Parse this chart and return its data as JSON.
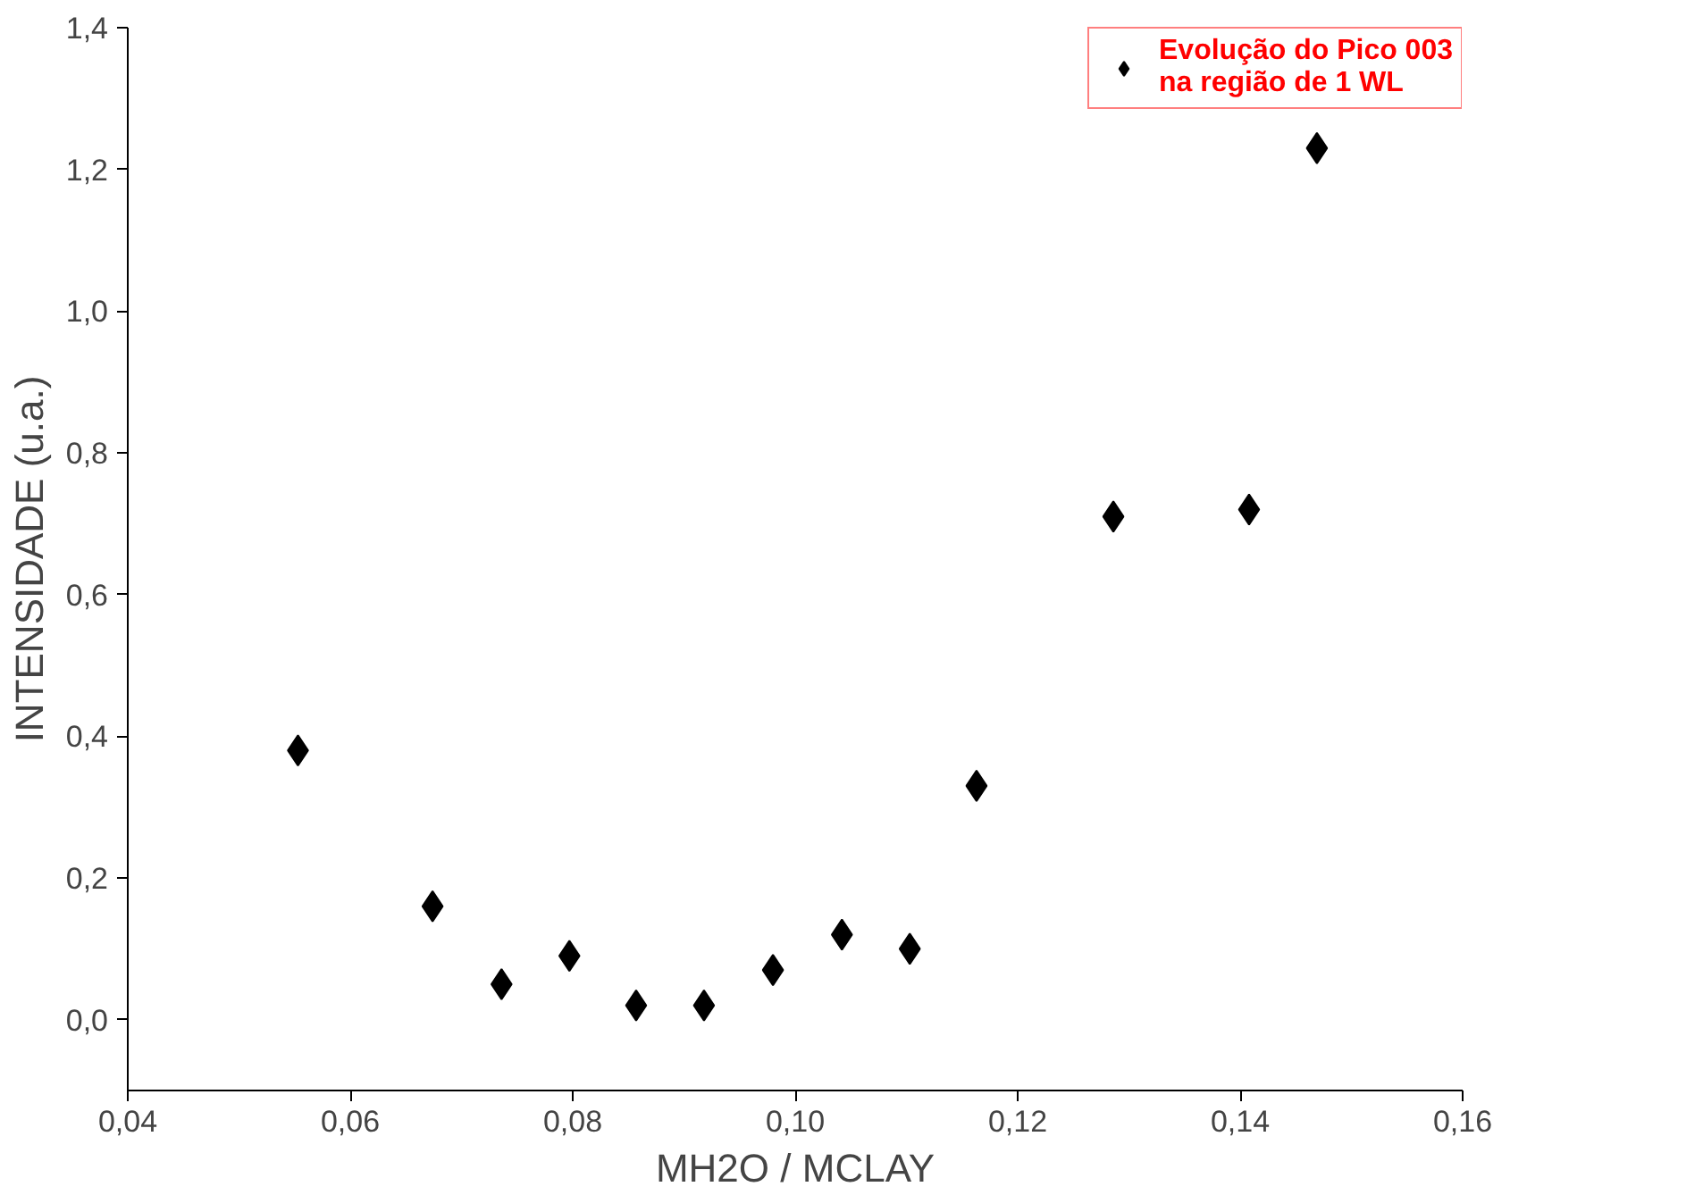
{
  "chart_data": {
    "type": "scatter",
    "xlabel": "MH2O / MCLAY",
    "ylabel": "INTENSIDADE (u.a.)",
    "x": [
      0.0553,
      0.0674,
      0.0736,
      0.0797,
      0.0857,
      0.0918,
      0.098,
      0.1042,
      0.1103,
      0.1163,
      0.1286,
      0.1408,
      0.1469
    ],
    "series": [
      {
        "name": "Evolução do Pico 003\nna região de 1 WL",
        "color": "#000000",
        "values": [
          0.38,
          0.16,
          0.05,
          0.09,
          0.02,
          0.02,
          0.07,
          0.12,
          0.1,
          0.33,
          0.71,
          0.72,
          1.23
        ]
      }
    ],
    "marker": "diamond",
    "legend": "top right",
    "grid": false,
    "xlim": [
      0.04,
      0.16
    ],
    "ylim": [
      -0.1,
      1.4
    ],
    "xticks": [
      {
        "value": 0.04,
        "label": "0,04"
      },
      {
        "value": 0.06,
        "label": "0,06"
      },
      {
        "value": 0.08,
        "label": "0,08"
      },
      {
        "value": 0.1,
        "label": "0,10"
      },
      {
        "value": 0.12,
        "label": "0,12"
      },
      {
        "value": 0.14,
        "label": "0,14"
      },
      {
        "value": 0.16,
        "label": "0,16"
      }
    ],
    "yticks": [
      {
        "value": 0.0,
        "label": "0,0"
      },
      {
        "value": 0.2,
        "label": "0,2"
      },
      {
        "value": 0.4,
        "label": "0,4"
      },
      {
        "value": 0.6,
        "label": "0,6"
      },
      {
        "value": 0.8,
        "label": "0,8"
      },
      {
        "value": 1.0,
        "label": "1,0"
      },
      {
        "value": 1.2,
        "label": "1,2"
      },
      {
        "value": 1.4,
        "label": "1,4"
      }
    ]
  }
}
